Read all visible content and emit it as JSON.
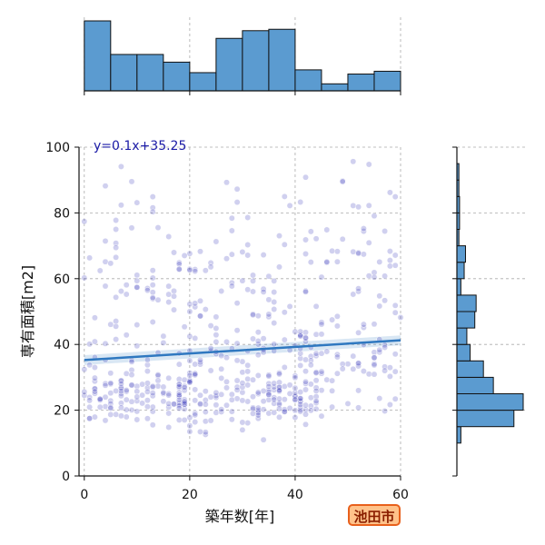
{
  "chart_data": {
    "type": "scatter",
    "subtype": "joint-plot-with-marginal-histograms-and-regression",
    "xlabel": "築年数[年]",
    "ylabel": "専有面積[m2]",
    "xlim": [
      -1,
      60
    ],
    "ylim": [
      0,
      100
    ],
    "x_ticks": [
      0,
      20,
      40,
      60
    ],
    "y_ticks": [
      0,
      20,
      40,
      60,
      80,
      100
    ],
    "grid": true,
    "regression": {
      "slope": 0.1,
      "intercept": 35.25,
      "equation_label": "y=0.1x+35.25"
    },
    "top_histogram": {
      "bin_edges": [
        0,
        5,
        10,
        15,
        20,
        25,
        30,
        35,
        40,
        45,
        50,
        55,
        60
      ],
      "relative_heights": [
        1.0,
        0.52,
        0.52,
        0.41,
        0.26,
        0.75,
        0.86,
        0.88,
        0.3,
        0.1,
        0.24,
        0.28
      ]
    },
    "right_histogram": {
      "bin_edges": [
        10,
        15,
        20,
        25,
        30,
        35,
        40,
        45,
        50,
        55,
        60,
        65,
        70,
        75,
        80,
        85,
        90,
        95,
        100
      ],
      "relative_lengths": [
        0.06,
        0.86,
        1.0,
        0.55,
        0.4,
        0.2,
        0.15,
        0.27,
        0.29,
        0.06,
        0.11,
        0.13,
        0.03,
        0.04,
        0.04,
        0.03,
        0.03,
        0.0
      ]
    },
    "colors": {
      "hist_fill": "#5b9bd0",
      "hist_edge": "#111111",
      "points": "#2a2ab8",
      "regression_line": "#2f78c0",
      "grid": "#aaaaaa"
    }
  },
  "badge": {
    "city": "池田市",
    "fill": "#ffc28a",
    "border": "#e8601c",
    "text_color": "#8a1f00"
  }
}
